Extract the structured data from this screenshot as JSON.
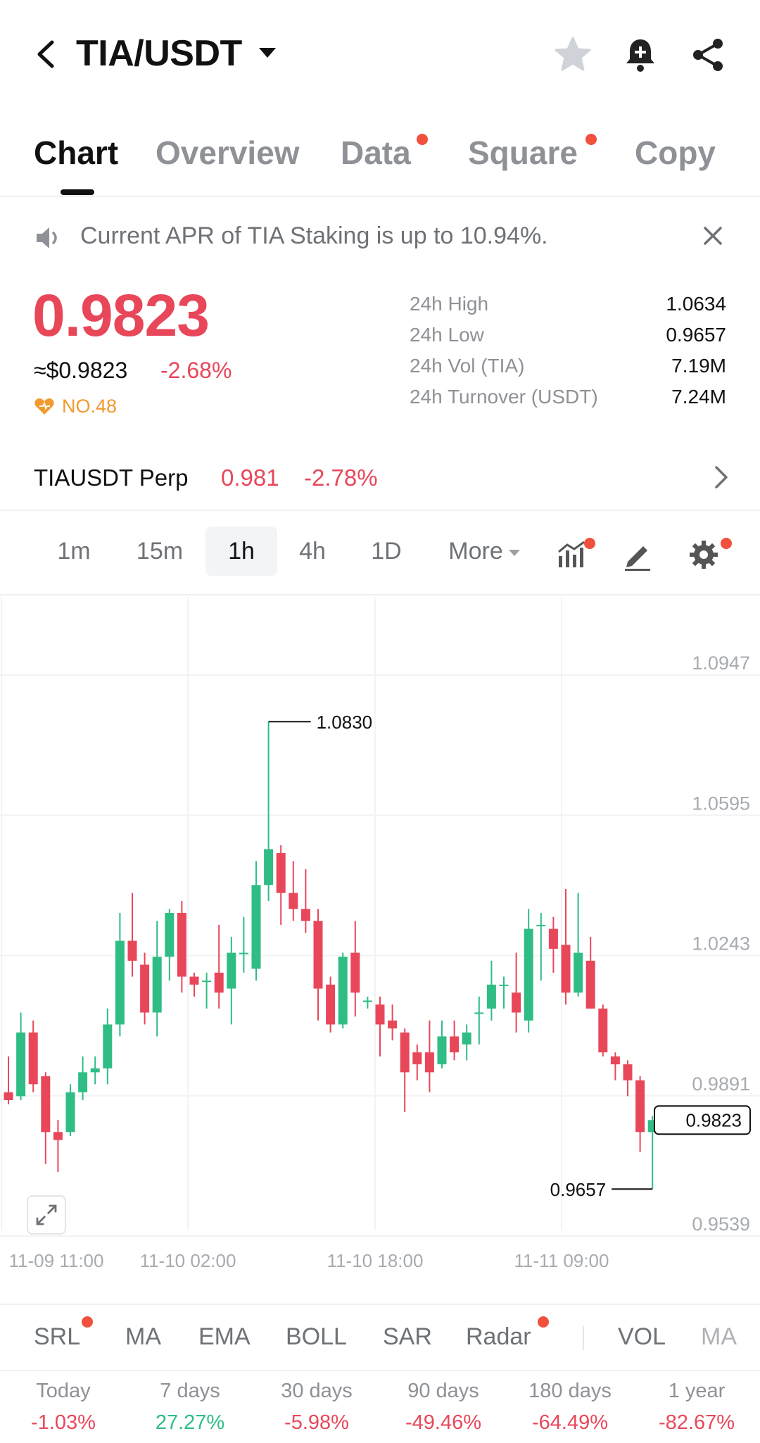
{
  "header": {
    "pair": "TIA/USDT",
    "icons": [
      "back-icon",
      "star-icon",
      "bell-plus-icon",
      "share-icon"
    ]
  },
  "tabs": [
    {
      "label": "Chart",
      "active": true,
      "dot": false
    },
    {
      "label": "Overview",
      "active": false,
      "dot": false
    },
    {
      "label": "Data",
      "active": false,
      "dot": true
    },
    {
      "label": "Square",
      "active": false,
      "dot": true
    },
    {
      "label": "Copy",
      "active": false,
      "dot": false
    }
  ],
  "banner": {
    "text": "Current APR of TIA Staking is up to 10.94%."
  },
  "price": {
    "last": "0.9823",
    "usd": "≈$0.9823",
    "change": "-2.68%",
    "rank": "NO.48"
  },
  "stats": [
    {
      "label": "24h High",
      "value": "1.0634"
    },
    {
      "label": "24h Low",
      "value": "0.9657"
    },
    {
      "label": "24h Vol (TIA)",
      "value": "7.19M"
    },
    {
      "label": "24h Turnover (USDT)",
      "value": "7.24M"
    }
  ],
  "perp": {
    "name": "TIAUSDT Perp",
    "price": "0.981",
    "change": "-2.78%"
  },
  "intervals": {
    "items": [
      "1m",
      "15m",
      "1h",
      "4h",
      "1D"
    ],
    "active": "1h",
    "more": "More"
  },
  "colors": {
    "up": "#2fbd85",
    "down": "#e8475a",
    "accent_dot": "#f0503c"
  },
  "chart_data": {
    "type": "candlestick",
    "y_ticks": [
      "1.0947",
      "1.0595",
      "1.0243",
      "0.9891",
      "0.9539"
    ],
    "x_ticks": [
      "11-09 11:00",
      "11-10 02:00",
      "11-10 18:00",
      "11-11 09:00"
    ],
    "ylim": [
      0.9539,
      1.0947
    ],
    "high_label": "1.0830",
    "low_label": "0.9657",
    "last_label": "0.9823",
    "candles": [
      [
        0.99,
        0.988,
        0.999,
        0.987
      ],
      [
        0.989,
        1.005,
        1.01,
        0.988
      ],
      [
        1.005,
        0.992,
        1.008,
        0.99
      ],
      [
        0.994,
        0.98,
        0.995,
        0.972
      ],
      [
        0.98,
        0.978,
        0.983,
        0.97
      ],
      [
        0.98,
        0.99,
        0.992,
        0.979
      ],
      [
        0.99,
        0.995,
        0.999,
        0.988
      ],
      [
        0.995,
        0.996,
        0.999,
        0.992
      ],
      [
        0.996,
        1.007,
        1.011,
        0.992
      ],
      [
        1.007,
        1.028,
        1.035,
        1.004
      ],
      [
        1.028,
        1.023,
        1.04,
        1.019
      ],
      [
        1.022,
        1.01,
        1.025,
        1.007
      ],
      [
        1.01,
        1.024,
        1.033,
        1.004
      ],
      [
        1.024,
        1.035,
        1.036,
        1.018
      ],
      [
        1.035,
        1.019,
        1.038,
        1.015
      ],
      [
        1.019,
        1.017,
        1.02,
        1.014
      ],
      [
        1.018,
        1.018,
        1.02,
        1.011
      ],
      [
        1.02,
        1.015,
        1.032,
        1.011
      ],
      [
        1.016,
        1.025,
        1.029,
        1.007
      ],
      [
        1.025,
        1.025,
        1.034,
        1.02
      ],
      [
        1.021,
        1.042,
        1.048,
        1.018
      ],
      [
        1.042,
        1.051,
        1.083,
        1.038
      ],
      [
        1.05,
        1.04,
        1.052,
        1.032
      ],
      [
        1.04,
        1.036,
        1.048,
        1.033
      ],
      [
        1.036,
        1.033,
        1.046,
        1.03
      ],
      [
        1.033,
        1.016,
        1.036,
        1.008
      ],
      [
        1.017,
        1.007,
        1.019,
        1.005
      ],
      [
        1.007,
        1.024,
        1.025,
        1.006
      ],
      [
        1.025,
        1.015,
        1.033,
        1.009
      ],
      [
        1.013,
        1.013,
        1.014,
        1.011
      ],
      [
        1.012,
        1.007,
        1.014,
        0.999
      ],
      [
        1.008,
        1.006,
        1.012,
        1.003
      ],
      [
        1.005,
        0.995,
        1.006,
        0.985
      ],
      [
        1.0,
        0.997,
        1.002,
        0.993
      ],
      [
        1.0,
        0.995,
        1.008,
        0.99
      ],
      [
        0.997,
        1.004,
        1.008,
        0.996
      ],
      [
        1.004,
        1.0,
        1.008,
        0.998
      ],
      [
        1.002,
        1.005,
        1.007,
        0.998
      ],
      [
        1.01,
        1.01,
        1.014,
        1.002
      ],
      [
        1.011,
        1.017,
        1.023,
        1.008
      ],
      [
        1.017,
        1.017,
        1.019,
        1.011
      ],
      [
        1.015,
        1.01,
        1.025,
        1.005
      ],
      [
        1.008,
        1.031,
        1.036,
        1.005
      ],
      [
        1.032,
        1.032,
        1.035,
        1.018
      ],
      [
        1.031,
        1.026,
        1.034,
        1.02
      ],
      [
        1.027,
        1.015,
        1.041,
        1.012
      ],
      [
        1.015,
        1.025,
        1.04,
        1.014
      ],
      [
        1.023,
        1.011,
        1.029,
        1.011
      ],
      [
        1.011,
        1.0,
        1.012,
        0.999
      ],
      [
        0.999,
        0.997,
        1.0,
        0.993
      ],
      [
        0.997,
        0.993,
        0.998,
        0.989
      ],
      [
        0.993,
        0.98,
        0.994,
        0.975
      ],
      [
        0.98,
        0.983,
        0.984,
        0.9657
      ]
    ]
  },
  "indicators": {
    "items": [
      {
        "label": "SRL",
        "dot": true
      },
      {
        "label": "MA",
        "dot": false
      },
      {
        "label": "EMA",
        "dot": false
      },
      {
        "label": "BOLL",
        "dot": false
      },
      {
        "label": "SAR",
        "dot": false
      },
      {
        "label": "Radar",
        "dot": true
      },
      {
        "label": "VOL",
        "dot": false
      },
      {
        "label": "MA",
        "dot": false
      }
    ]
  },
  "performance": [
    {
      "label": "Today",
      "value": "-1.03%",
      "dir": "neg"
    },
    {
      "label": "7 days",
      "value": "27.27%",
      "dir": "pos"
    },
    {
      "label": "30 days",
      "value": "-5.98%",
      "dir": "neg"
    },
    {
      "label": "90 days",
      "value": "-49.46%",
      "dir": "neg"
    },
    {
      "label": "180 days",
      "value": "-64.49%",
      "dir": "neg"
    },
    {
      "label": "1 year",
      "value": "-82.67%",
      "dir": "neg"
    }
  ]
}
